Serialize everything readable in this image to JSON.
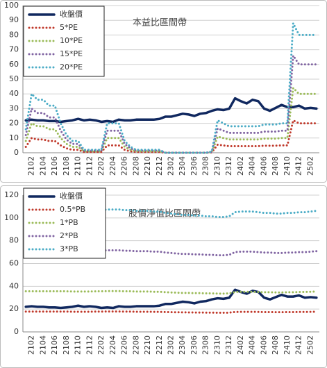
{
  "chart_data": [
    {
      "type": "line",
      "title": "本益比區間帶",
      "categories": [
        null,
        "2102",
        null,
        "2104",
        null,
        "2106",
        null,
        "2108",
        null,
        "2110",
        null,
        "2112",
        null,
        "2202",
        null,
        "2204",
        null,
        "2206",
        null,
        "2208",
        null,
        "2210",
        null,
        "2212",
        null,
        "2302",
        null,
        "2304",
        null,
        "2306",
        null,
        "2308",
        null,
        "2310",
        null,
        "2312",
        null,
        "2402",
        null,
        "2404",
        null,
        "2406",
        null,
        "2408",
        null,
        "2410",
        null,
        "2412",
        null,
        "2502",
        null
      ],
      "ylim": [
        0,
        100
      ],
      "yticks": [
        0,
        10,
        20,
        30,
        40,
        50,
        60,
        70,
        80,
        90,
        100
      ],
      "grid": true,
      "series": [
        {
          "name": "收盤價",
          "color": "#10285f",
          "style": "solid",
          "values": [
            22,
            22.5,
            22,
            22,
            21.5,
            21.5,
            21,
            21.5,
            22,
            23,
            22,
            22.5,
            22,
            21,
            21.5,
            21,
            22.5,
            22,
            22,
            22.5,
            22.5,
            22.5,
            22.5,
            23,
            24.5,
            24.5,
            25.5,
            26.5,
            26,
            25,
            26.5,
            27,
            28.5,
            29.5,
            29,
            30,
            37,
            35,
            33.5,
            36,
            35,
            30,
            28.5,
            30.5,
            32.5,
            31,
            31,
            32,
            30,
            30.5,
            30
          ]
        },
        {
          "name": "5*PE",
          "color": "#c0392b",
          "style": "dotted",
          "values": [
            4,
            10,
            9,
            9,
            8,
            8,
            5,
            3,
            2,
            2,
            0.5,
            0.5,
            0.5,
            0.5,
            5,
            5,
            5,
            2,
            1,
            0.5,
            0.5,
            0.5,
            0.5,
            0.5,
            0,
            0,
            0,
            0,
            0,
            0,
            0,
            0,
            0.2,
            5.5,
            5,
            4.5,
            4.5,
            4.5,
            4.5,
            4.5,
            4.5,
            4.8,
            4.8,
            4.8,
            5,
            5,
            22,
            20,
            20,
            20,
            20
          ]
        },
        {
          "name": "10*PE",
          "color": "#9bbb59",
          "style": "dotted",
          "values": [
            8,
            20,
            18,
            18,
            16,
            16,
            10,
            6,
            4,
            4,
            1,
            1,
            1,
            1,
            10,
            10,
            10,
            4,
            2,
            1,
            1,
            1,
            1,
            1,
            0,
            0,
            0,
            0,
            0,
            0,
            0,
            0,
            0.4,
            11,
            10,
            9,
            9,
            9,
            9,
            9,
            9,
            9.6,
            9.6,
            9.6,
            10,
            10,
            44,
            40,
            40,
            40,
            40
          ]
        },
        {
          "name": "15*PE",
          "color": "#8064a2",
          "style": "dotted",
          "values": [
            12,
            30,
            27,
            27,
            24,
            24,
            15,
            9,
            6,
            6,
            1.5,
            1.5,
            1.5,
            1.5,
            15,
            15,
            15,
            6,
            3,
            1.5,
            1.5,
            1.5,
            1.5,
            1.5,
            0,
            0,
            0,
            0,
            0,
            0,
            0,
            0,
            0.6,
            16.5,
            15,
            13.5,
            13.5,
            13.5,
            13.5,
            13.5,
            13.5,
            14.4,
            14.4,
            14.4,
            15,
            15,
            66,
            60,
            60,
            60,
            60
          ]
        },
        {
          "name": "20*PE",
          "color": "#4bacc6",
          "style": "dotted",
          "values": [
            16,
            40,
            36,
            36,
            32,
            32,
            20,
            12,
            8,
            8,
            2,
            2,
            2,
            2,
            20,
            20,
            20,
            8,
            4,
            2,
            2,
            2,
            2,
            2,
            0,
            0,
            0,
            0,
            0,
            0,
            0,
            0,
            0.8,
            22,
            20,
            18,
            18,
            18,
            18,
            18,
            18,
            19.2,
            19.2,
            19.2,
            20,
            20,
            88,
            80,
            80,
            80,
            80
          ]
        }
      ]
    },
    {
      "type": "line",
      "title": "股價淨值比區間帶",
      "categories": [
        null,
        "2102",
        null,
        "2104",
        null,
        "2106",
        null,
        "2108",
        null,
        "2110",
        null,
        "2112",
        null,
        "2202",
        null,
        "2204",
        null,
        "2206",
        null,
        "2208",
        null,
        "2210",
        null,
        "2212",
        null,
        "2302",
        null,
        "2304",
        null,
        "2306",
        null,
        "2308",
        null,
        "2310",
        null,
        "2312",
        null,
        "2402",
        null,
        "2404",
        null,
        "2406",
        null,
        "2408",
        null,
        "2410",
        null,
        "2412",
        null,
        "2502",
        null
      ],
      "ylim": [
        0,
        120
      ],
      "yticks": [
        0,
        20,
        40,
        60,
        80,
        100,
        120
      ],
      "grid": true,
      "series": [
        {
          "name": "收盤價",
          "color": "#10285f",
          "style": "solid",
          "values": [
            22,
            22.5,
            22,
            22,
            21.5,
            21.5,
            21,
            21.5,
            22,
            23,
            22,
            22.5,
            22,
            21,
            21.5,
            21,
            22.5,
            22,
            22,
            22.5,
            22.5,
            22.5,
            22.5,
            23,
            24.5,
            24.5,
            25.5,
            26.5,
            26,
            25,
            26.5,
            27,
            28.5,
            29.5,
            29,
            30,
            37,
            35,
            33.5,
            36,
            35,
            30,
            28.5,
            30.5,
            32.5,
            31,
            31,
            32,
            30,
            30.5,
            30
          ]
        },
        {
          "name": "0.5*PB",
          "color": "#c0392b",
          "style": "dotted",
          "values": [
            17.8,
            17.8,
            17.8,
            17.8,
            17.8,
            17.8,
            17.8,
            17.8,
            17.7,
            17.7,
            17.7,
            17.7,
            17.8,
            17.8,
            17.9,
            17.9,
            17.9,
            17.8,
            17.8,
            17.7,
            17.7,
            17.7,
            17.6,
            17.6,
            17.4,
            17.3,
            17.2,
            17.1,
            17.1,
            17.0,
            17.0,
            16.9,
            16.9,
            16.8,
            16.8,
            16.9,
            17.5,
            17.6,
            17.6,
            17.6,
            17.5,
            17.4,
            17.4,
            17.3,
            17.3,
            17.4,
            17.4,
            17.5,
            17.5,
            17.6,
            17.7
          ]
        },
        {
          "name": "1*PB",
          "color": "#9bbb59",
          "style": "dotted",
          "values": [
            35.6,
            35.6,
            35.6,
            35.6,
            35.6,
            35.6,
            35.6,
            35.6,
            35.4,
            35.4,
            35.4,
            35.4,
            35.6,
            35.6,
            35.8,
            35.8,
            35.8,
            35.6,
            35.6,
            35.4,
            35.4,
            35.4,
            35.2,
            35.2,
            34.8,
            34.6,
            34.4,
            34.2,
            34.2,
            34.0,
            34.0,
            33.8,
            33.8,
            33.6,
            33.6,
            33.8,
            35.0,
            35.2,
            35.2,
            35.2,
            35.0,
            34.8,
            34.8,
            34.6,
            34.6,
            34.8,
            34.8,
            35.0,
            35.0,
            35.2,
            35.4
          ]
        },
        {
          "name": "2*PB",
          "color": "#8064a2",
          "style": "dotted",
          "values": [
            71.2,
            71.2,
            71.2,
            71.2,
            71.2,
            71.2,
            71.2,
            71.2,
            70.8,
            70.8,
            70.8,
            70.8,
            71.2,
            71.2,
            71.6,
            71.6,
            71.6,
            71.2,
            71.2,
            70.8,
            70.8,
            70.8,
            70.4,
            70.4,
            69.6,
            69.2,
            68.8,
            68.4,
            68.4,
            68.0,
            68.0,
            67.6,
            67.6,
            67.2,
            67.2,
            67.6,
            70.0,
            70.4,
            70.4,
            70.4,
            70.0,
            69.6,
            69.6,
            69.2,
            69.2,
            69.6,
            69.6,
            70.0,
            70.0,
            70.4,
            70.8
          ]
        },
        {
          "name": "3*PB",
          "color": "#4bacc6",
          "style": "dotted",
          "values": [
            106.8,
            106.8,
            106.8,
            106.8,
            106.8,
            106.8,
            106.8,
            106.8,
            106.2,
            106.2,
            106.2,
            106.2,
            106.8,
            106.8,
            107.4,
            107.4,
            107.4,
            106.8,
            106.8,
            106.2,
            106.2,
            106.2,
            105.6,
            105.6,
            104.4,
            103.8,
            103.2,
            102.6,
            102.6,
            102.0,
            102.0,
            101.4,
            101.4,
            100.8,
            100.8,
            101.4,
            105.0,
            105.6,
            105.6,
            105.6,
            105.0,
            104.4,
            104.4,
            103.8,
            103.8,
            104.4,
            104.4,
            105.0,
            105.0,
            105.6,
            106.2
          ]
        }
      ]
    }
  ]
}
